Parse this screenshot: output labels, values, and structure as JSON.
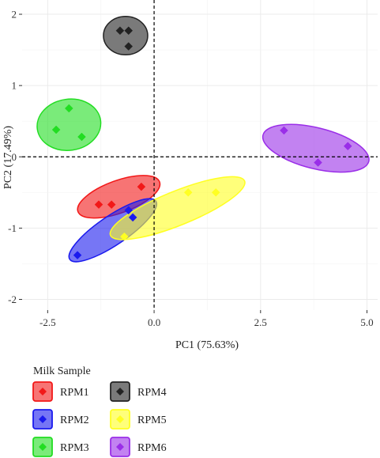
{
  "chart_data": {
    "type": "scatter",
    "xlabel": "PC1 (75.63%)",
    "ylabel": "PC2 (17.49%)",
    "xlim": [
      -3.1,
      5.25
    ],
    "ylim": [
      -2.15,
      2.2
    ],
    "xticks": [
      -2.5,
      0.0,
      2.5,
      5.0
    ],
    "xtick_labels": [
      "-2.5",
      "0.0",
      "2.5",
      "5.0"
    ],
    "yticks": [
      -2,
      -1,
      0,
      1,
      2
    ],
    "ytick_labels": [
      "-2",
      "-1",
      "0",
      "1",
      "2"
    ],
    "grid": true,
    "reference_lines": {
      "x": 0,
      "y": 0,
      "style": "dashed"
    },
    "legend": {
      "title": "Milk Sample",
      "placement": "bottom-left"
    },
    "series": [
      {
        "name": "RPM1",
        "color": "#f21818",
        "points": [
          [
            -1.3,
            -0.67
          ],
          [
            -1.0,
            -0.67
          ],
          [
            -0.3,
            -0.42
          ]
        ],
        "ellipse": {
          "cx": -0.83,
          "cy": -0.56,
          "rx": 1.02,
          "ry": 0.38,
          "angle_deg": 20
        }
      },
      {
        "name": "RPM2",
        "color": "#1a1aee",
        "points": [
          [
            -1.8,
            -1.38
          ],
          [
            -0.6,
            -0.75
          ],
          [
            -0.5,
            -0.85
          ]
        ],
        "ellipse": {
          "cx": -0.97,
          "cy": -1.03,
          "rx": 1.22,
          "ry": 0.34,
          "angle_deg": 34
        }
      },
      {
        "name": "RPM3",
        "color": "#22dd22",
        "points": [
          [
            -2.0,
            0.68
          ],
          [
            -2.3,
            0.38
          ],
          [
            -1.7,
            0.28
          ]
        ],
        "ellipse": {
          "cx": -2.0,
          "cy": 0.45,
          "rx": 0.75,
          "ry": 0.6,
          "angle_deg": 8
        }
      },
      {
        "name": "RPM4",
        "color": "#222222",
        "points": [
          [
            -0.8,
            1.77
          ],
          [
            -0.6,
            1.77
          ],
          [
            -0.6,
            1.55
          ]
        ],
        "ellipse": {
          "cx": -0.67,
          "cy": 1.7,
          "rx": 0.52,
          "ry": 0.45,
          "angle_deg": 0
        }
      },
      {
        "name": "RPM5",
        "color": "#ffff22",
        "points": [
          [
            -0.7,
            -1.12
          ],
          [
            0.8,
            -0.5
          ],
          [
            1.45,
            -0.5
          ]
        ],
        "ellipse": {
          "cx": 0.55,
          "cy": -0.72,
          "rx": 1.7,
          "ry": 0.4,
          "angle_deg": 22
        }
      },
      {
        "name": "RPM6",
        "color": "#9a2ee8",
        "points": [
          [
            3.05,
            0.37
          ],
          [
            3.85,
            -0.08
          ],
          [
            4.55,
            0.15
          ]
        ],
        "ellipse": {
          "cx": 3.8,
          "cy": 0.12,
          "rx": 1.28,
          "ry": 0.48,
          "angle_deg": -14
        }
      }
    ]
  }
}
